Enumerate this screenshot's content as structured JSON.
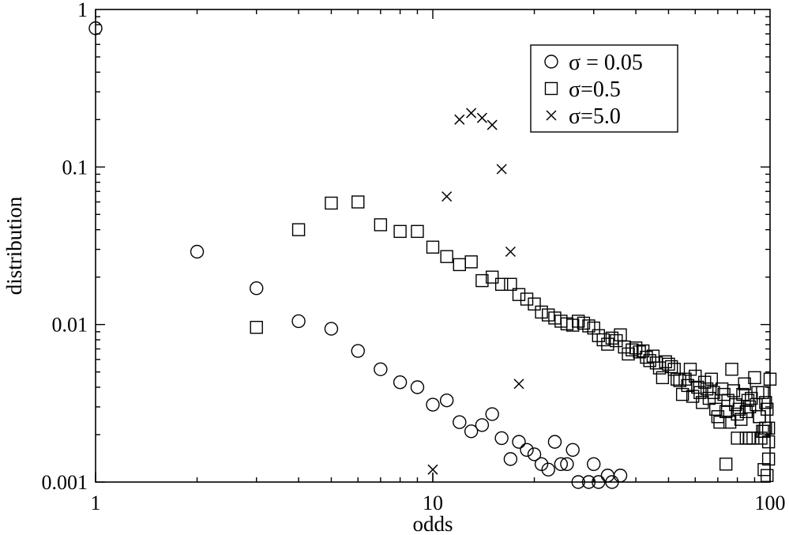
{
  "chart_data": {
    "type": "scatter",
    "title": "",
    "xlabel": "odds",
    "ylabel": "distribution",
    "xscale": "log",
    "yscale": "log",
    "xlim": [
      1,
      100
    ],
    "ylim": [
      0.001,
      1
    ],
    "grid": false,
    "legend_position": "top-right",
    "x_ticks": [
      {
        "value": 1,
        "label": "1"
      },
      {
        "value": 10,
        "label": "10"
      },
      {
        "value": 100,
        "label": "100"
      }
    ],
    "y_ticks": [
      {
        "value": 0.001,
        "label": "0.001"
      },
      {
        "value": 0.01,
        "label": "0.01"
      },
      {
        "value": 0.1,
        "label": "0.1"
      },
      {
        "value": 1,
        "label": "1"
      }
    ],
    "series": [
      {
        "name": "σ = 0.05",
        "marker": "circle",
        "points": [
          [
            1,
            0.76
          ],
          [
            2,
            0.029
          ],
          [
            3,
            0.017
          ],
          [
            4,
            0.0105
          ],
          [
            5,
            0.0094
          ],
          [
            6,
            0.0068
          ],
          [
            7,
            0.0052
          ],
          [
            8,
            0.0043
          ],
          [
            9,
            0.004
          ],
          [
            10,
            0.0031
          ],
          [
            11,
            0.0033
          ],
          [
            12,
            0.0024
          ],
          [
            13,
            0.0021
          ],
          [
            14,
            0.0023
          ],
          [
            15,
            0.0027
          ],
          [
            16,
            0.0019
          ],
          [
            17,
            0.0014
          ],
          [
            18,
            0.0018
          ],
          [
            19,
            0.0016
          ],
          [
            20,
            0.0015
          ],
          [
            21,
            0.0013
          ],
          [
            22,
            0.0012
          ],
          [
            23,
            0.0018
          ],
          [
            24,
            0.0013
          ],
          [
            25,
            0.0013
          ],
          [
            26,
            0.0016
          ],
          [
            27,
            0.001
          ],
          [
            29,
            0.001
          ],
          [
            30,
            0.0013
          ],
          [
            31,
            0.001
          ],
          [
            33,
            0.0011
          ],
          [
            34,
            0.001
          ],
          [
            36,
            0.0011
          ]
        ]
      },
      {
        "name": "σ=0.5",
        "marker": "square",
        "points": [
          [
            3,
            0.0096
          ],
          [
            4,
            0.04
          ],
          [
            5,
            0.059
          ],
          [
            6,
            0.06
          ],
          [
            7,
            0.043
          ],
          [
            8,
            0.039
          ],
          [
            9,
            0.039
          ],
          [
            10,
            0.031
          ],
          [
            11,
            0.027
          ],
          [
            12,
            0.024
          ],
          [
            13,
            0.025
          ],
          [
            14,
            0.019
          ],
          [
            15,
            0.02
          ],
          [
            16,
            0.018
          ],
          [
            17,
            0.018
          ],
          [
            18,
            0.0155
          ],
          [
            19,
            0.0145
          ],
          [
            20,
            0.0135
          ],
          [
            21,
            0.012
          ],
          [
            22,
            0.0115
          ],
          [
            23,
            0.011
          ],
          [
            24,
            0.0105
          ],
          [
            25,
            0.0101
          ],
          [
            26,
            0.0099
          ],
          [
            27,
            0.0105
          ],
          [
            28,
            0.0102
          ],
          [
            29,
            0.0098
          ],
          [
            30,
            0.0095
          ],
          [
            31,
            0.0085
          ],
          [
            32,
            0.008
          ],
          [
            33,
            0.0075
          ],
          [
            34,
            0.0082
          ],
          [
            35,
            0.0079
          ],
          [
            36,
            0.0086
          ],
          [
            37,
            0.0072
          ],
          [
            38,
            0.0065
          ],
          [
            39,
            0.0069
          ],
          [
            40,
            0.0071
          ],
          [
            41,
            0.0067
          ],
          [
            42,
            0.0068
          ],
          [
            43,
            0.0062
          ],
          [
            44,
            0.0059
          ],
          [
            45,
            0.0063
          ],
          [
            46,
            0.0057
          ],
          [
            47,
            0.0053
          ],
          [
            48,
            0.0046
          ],
          [
            49,
            0.0058
          ],
          [
            50,
            0.0056
          ],
          [
            51,
            0.0054
          ],
          [
            52,
            0.0052
          ],
          [
            53,
            0.0045
          ],
          [
            54,
            0.0044
          ],
          [
            55,
            0.0036
          ],
          [
            56,
            0.0045
          ],
          [
            57,
            0.0041
          ],
          [
            58,
            0.0052
          ],
          [
            59,
            0.0035
          ],
          [
            60,
            0.0047
          ],
          [
            61,
            0.004
          ],
          [
            62,
            0.0037
          ],
          [
            63,
            0.0032
          ],
          [
            64,
            0.0043
          ],
          [
            65,
            0.0039
          ],
          [
            66,
            0.0034
          ],
          [
            67,
            0.0045
          ],
          [
            68,
            0.0037
          ],
          [
            69,
            0.0029
          ],
          [
            70,
            0.0026
          ],
          [
            71,
            0.0024
          ],
          [
            72,
            0.0039
          ],
          [
            73,
            0.0036
          ],
          [
            74,
            0.0028
          ],
          [
            75,
            0.0033
          ],
          [
            76,
            0.0024
          ],
          [
            77,
            0.0052
          ],
          [
            78,
            0.0038
          ],
          [
            79,
            0.0031
          ],
          [
            80,
            0.0027
          ],
          [
            81,
            0.0029
          ],
          [
            82,
            0.0025
          ],
          [
            83,
            0.0036
          ],
          [
            84,
            0.0042
          ],
          [
            85,
            0.0028
          ],
          [
            86,
            0.0033
          ],
          [
            87,
            0.003
          ],
          [
            88,
            0.0034
          ],
          [
            89,
            0.0019
          ],
          [
            90,
            0.0046
          ],
          [
            91,
            0.0031
          ],
          [
            92,
            0.0037
          ],
          [
            93,
            0.0026
          ],
          [
            94,
            0.0019
          ],
          [
            95,
            0.0021
          ],
          [
            96,
            0.0012
          ],
          [
            97,
            0.0032
          ],
          [
            98,
            0.0029
          ],
          [
            99,
            0.0022
          ],
          [
            100,
            0.0045
          ],
          [
            74,
            0.0013
          ],
          [
            80,
            0.0019
          ],
          [
            85,
            0.0019
          ],
          [
            87,
            0.0019
          ],
          [
            97,
            0.0022
          ],
          [
            98,
            0.0011
          ],
          [
            99,
            0.0014
          ],
          [
            93,
            0.0026
          ],
          [
            96,
            0.0021
          ],
          [
            99,
            0.0018
          ],
          [
            95,
            0.0037
          ]
        ]
      },
      {
        "name": "σ=5.0",
        "marker": "x",
        "points": [
          [
            10,
            0.0012
          ],
          [
            11,
            0.065
          ],
          [
            12,
            0.2
          ],
          [
            13,
            0.22
          ],
          [
            14,
            0.205
          ],
          [
            15,
            0.185
          ],
          [
            16,
            0.097
          ],
          [
            17,
            0.029
          ],
          [
            18,
            0.0042
          ]
        ]
      }
    ]
  }
}
